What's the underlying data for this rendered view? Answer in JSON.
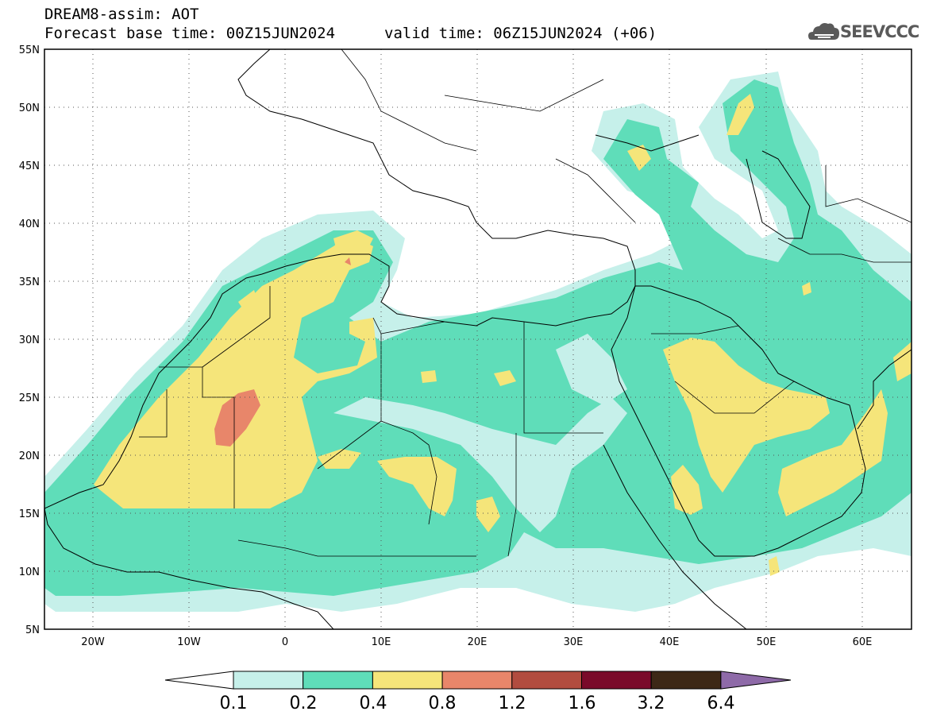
{
  "header": {
    "title": "DREAM8-assim: AOT",
    "base_time": "Forecast base time: 00Z15JUN2024",
    "valid_time": "valid time: 06Z15JUN2024 (+06)"
  },
  "logo": {
    "text": "SEEVCCC",
    "icon": "cloud-icon"
  },
  "map": {
    "lat_ticks": [
      "55N",
      "50N",
      "45N",
      "40N",
      "35N",
      "30N",
      "25N",
      "20N",
      "15N",
      "10N",
      "5N"
    ],
    "lon_ticks": [
      "20W",
      "10W",
      "0",
      "10E",
      "20E",
      "30E",
      "40E",
      "50E",
      "60E"
    ],
    "lon_range": [
      -25,
      65
    ],
    "lat_range": [
      5,
      55
    ]
  },
  "colorbar": {
    "labels": [
      "0.1",
      "0.2",
      "0.4",
      "0.8",
      "1.2",
      "1.6",
      "3.2",
      "6.4"
    ],
    "colors": [
      "#c6f0ea",
      "#5fddb9",
      "#f5e57a",
      "#e8866a",
      "#b24c3f",
      "#7a0a2a",
      "#3d2816"
    ],
    "over_color": "#8e6aa8",
    "under_color": "#ffffff"
  },
  "palette": {
    "c1": "#c6f0ea",
    "c2": "#5fddb9",
    "c3": "#f5e57a",
    "c4": "#e8866a"
  }
}
